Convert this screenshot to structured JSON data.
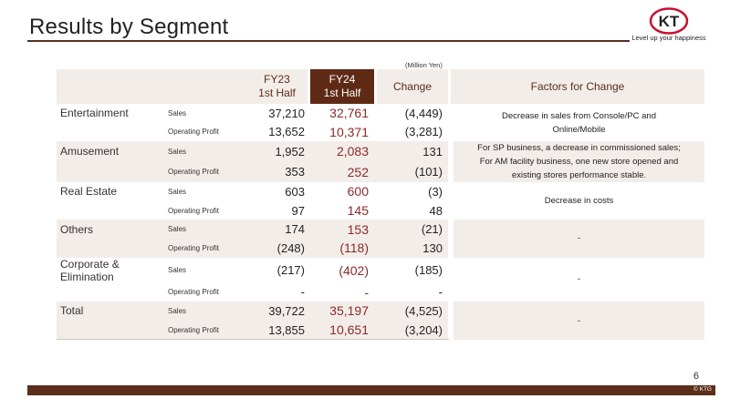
{
  "slide": {
    "title": "Results by Segment",
    "page_number": "6",
    "copyright": "© KTG",
    "unit_note": "(Million Yen)"
  },
  "logo": {
    "letters": "KT",
    "tagline": "Level up your happiness",
    "color": "#c8102e"
  },
  "table": {
    "headers": {
      "fy23": [
        "FY23",
        "1st Half"
      ],
      "fy24": [
        "FY24",
        "1st Half"
      ],
      "change": "Change",
      "factors": "Factors for Change"
    },
    "segments": [
      {
        "name": "Entertainment",
        "rows": [
          {
            "metric": "Sales",
            "fy23": "37,210",
            "fy24": "32,761",
            "change": "(4,449)"
          },
          {
            "metric": "Operating Profit",
            "fy23": "13,652",
            "fy24": "10,371",
            "change": "(3,281)"
          }
        ],
        "factor": [
          "Decrease in sales from Console/PC and",
          "Online/Mobile"
        ]
      },
      {
        "name": "Amusement",
        "rows": [
          {
            "metric": "Sales",
            "fy23": "1,952",
            "fy24": "2,083",
            "change": "131"
          },
          {
            "metric": "Operating Profit",
            "fy23": "353",
            "fy24": "252",
            "change": "(101)"
          }
        ],
        "factor": [
          "For SP business, a decrease in commissioned sales;",
          "For AM facility business, one new store opened and",
          "existing stores performance stable."
        ]
      },
      {
        "name": "Real Estate",
        "rows": [
          {
            "metric": "Sales",
            "fy23": "603",
            "fy24": "600",
            "change": "(3)"
          },
          {
            "metric": "Operating Profit",
            "fy23": "97",
            "fy24": "145",
            "change": "48"
          }
        ],
        "factor": [
          "Decrease in costs"
        ]
      },
      {
        "name": "Others",
        "rows": [
          {
            "metric": "Sales",
            "fy23": "174",
            "fy24": "153",
            "change": "(21)"
          },
          {
            "metric": "Operating Profit",
            "fy23": "(248)",
            "fy24": "(118)",
            "change": "130"
          }
        ],
        "factor": [
          "-"
        ]
      },
      {
        "name": "Corporate & Elimination",
        "rows": [
          {
            "metric": "Sales",
            "fy23": "(217)",
            "fy24": "(402)",
            "change": "(185)"
          },
          {
            "metric": "Operating Profit",
            "fy23": "-",
            "fy24": "-",
            "change": "-"
          }
        ],
        "factor": [
          "-"
        ]
      },
      {
        "name": "Total",
        "rows": [
          {
            "metric": "Sales",
            "fy23": "39,722",
            "fy24": "35,197",
            "change": "(4,525)"
          },
          {
            "metric": "Operating Profit",
            "fy23": "13,855",
            "fy24": "10,651",
            "change": "(3,204)"
          }
        ],
        "factor": [
          "-"
        ]
      }
    ]
  },
  "colors": {
    "brand_brown": "#5a2e1b",
    "header_dark": "#5e2a16",
    "shade": "#f3ede9",
    "current_value": "#8b2a2a"
  }
}
